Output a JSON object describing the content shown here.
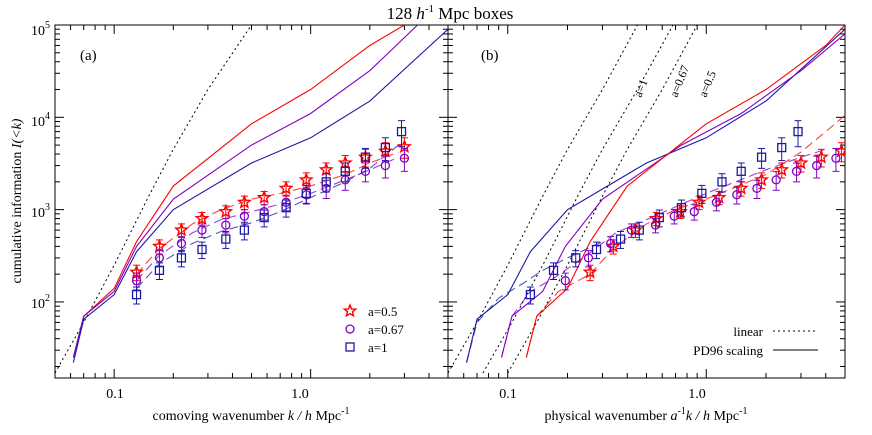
{
  "figure": {
    "title": "128 h-1 Mpc boxes",
    "title_main": "128 ",
    "title_h": "h",
    "title_exp": "-1",
    "title_rest": " Mpc boxes",
    "ylabel_main": "cumulative information  ",
    "ylabel_sym": "I(<k)",
    "colors": {
      "a=0.5": "#ff0000",
      "a=0.67": "#8000c0",
      "a=1": "#1a1aa6",
      "linear": "#000000"
    }
  },
  "chart_data": [
    {
      "type": "line",
      "panel_label": "(a)",
      "xlabel": "comoving wavenumber  k / h Mpc-1",
      "xlabel_main": "comoving wavenumber  ",
      "xlabel_sym": "k / h",
      "xlabel_rest": " Mpc",
      "xlabel_exp": "-1",
      "ylabel": "cumulative information  I(<k)",
      "x_scale": "log",
      "y_scale": "log",
      "xlim": [
        0.05,
        5.0
      ],
      "ylim": [
        15,
        100000
      ],
      "x_tick_labels": [
        {
          "value": 0.1,
          "label": "0.1"
        },
        {
          "value": 1.0,
          "label": "1.0"
        }
      ],
      "y_tick_labels": [
        {
          "value": 100,
          "label": "10",
          "exp": "2"
        },
        {
          "value": 1000,
          "label": "10",
          "exp": "3"
        },
        {
          "value": 10000,
          "label": "10",
          "exp": "4"
        },
        {
          "value": 100000,
          "label": "10",
          "exp": "5"
        }
      ],
      "legend": {
        "placement": "bottom-right",
        "entries": [
          {
            "label": "a=0.5",
            "marker": "star",
            "color": "#ff0000"
          },
          {
            "label": "a=0.67",
            "marker": "circle",
            "color": "#8000c0"
          },
          {
            "label": "a=1",
            "marker": "square",
            "color": "#1a1aa6"
          }
        ]
      },
      "series": [
        {
          "style": "linear",
          "color": "#000000",
          "dash": "2,3",
          "x": [
            0.05,
            0.07,
            0.1,
            0.15,
            0.2,
            0.3,
            0.5
          ],
          "y": [
            17,
            60,
            250,
            1400,
            4500,
            20000,
            100000
          ]
        },
        {
          "style": "pd96",
          "color": "#ff0000",
          "x": [
            0.062,
            0.07,
            0.1,
            0.13,
            0.2,
            0.5,
            1.0,
            2.0,
            3.0
          ],
          "y": [
            25,
            70,
            140,
            450,
            1800,
            8500,
            20000,
            60000,
            100000
          ]
        },
        {
          "style": "pd96",
          "color": "#8000c0",
          "x": [
            0.062,
            0.07,
            0.1,
            0.13,
            0.2,
            0.5,
            1.0,
            2.0,
            3.5
          ],
          "y": [
            25,
            70,
            130,
            400,
            1300,
            5000,
            11000,
            32000,
            100000
          ]
        },
        {
          "style": "pd96",
          "color": "#1a1aa6",
          "x": [
            0.062,
            0.07,
            0.1,
            0.13,
            0.2,
            0.5,
            1.0,
            2.0,
            5.0
          ],
          "y": [
            22,
            65,
            120,
            350,
            1000,
            3200,
            6000,
            15000,
            90000
          ]
        },
        {
          "style": "dashed",
          "color": "#ff0000",
          "dash": "9,5",
          "x": [
            0.13,
            0.17,
            0.25,
            0.35,
            0.5,
            0.7,
            1.0,
            1.5,
            2.0,
            2.8
          ],
          "y": [
            200,
            380,
            700,
            1000,
            1300,
            1500,
            1800,
            2400,
            3200,
            4200
          ]
        },
        {
          "style": "dashed",
          "color": "#8000c0",
          "dash": "9,5",
          "x": [
            0.13,
            0.17,
            0.25,
            0.35,
            0.5,
            0.7,
            1.0,
            1.5,
            2.0,
            2.8
          ],
          "y": [
            170,
            320,
            560,
            780,
            950,
            1150,
            1500,
            2100,
            2700,
            3700
          ]
        },
        {
          "style": "dashed",
          "color": "#1a1aa6",
          "dash": "9,5",
          "x": [
            0.13,
            0.17,
            0.25,
            0.35,
            0.5,
            0.7,
            1.0,
            1.5,
            2.0,
            2.8
          ],
          "y": [
            140,
            260,
            430,
            580,
            720,
            950,
            1350,
            2000,
            2800,
            5000
          ]
        }
      ],
      "points": [
        {
          "name": "a=0.5",
          "marker": "star",
          "color": "#ff0000",
          "x": [
            0.13,
            0.17,
            0.22,
            0.28,
            0.37,
            0.46,
            0.58,
            0.75,
            0.95,
            1.2,
            1.5,
            1.9,
            2.4,
            3.0
          ],
          "y": [
            210,
            400,
            600,
            800,
            950,
            1200,
            1350,
            1700,
            2100,
            2700,
            3200,
            3700,
            4300,
            4800
          ],
          "err": [
            40,
            70,
            100,
            130,
            150,
            200,
            220,
            300,
            400,
            500,
            650,
            800,
            1000,
            1200
          ]
        },
        {
          "name": "a=0.67",
          "marker": "circle",
          "color": "#8000c0",
          "x": [
            0.13,
            0.17,
            0.22,
            0.28,
            0.37,
            0.46,
            0.58,
            0.75,
            0.95,
            1.2,
            1.5,
            1.9,
            2.4,
            3.0
          ],
          "y": [
            170,
            300,
            430,
            600,
            680,
            850,
            950,
            1200,
            1450,
            1700,
            2100,
            2600,
            3000,
            3600
          ],
          "err": [
            35,
            60,
            80,
            100,
            120,
            150,
            180,
            230,
            300,
            380,
            480,
            600,
            800,
            1000
          ]
        },
        {
          "name": "a=1",
          "marker": "square",
          "color": "#1a1aa6",
          "x": [
            0.13,
            0.17,
            0.22,
            0.28,
            0.37,
            0.46,
            0.58,
            0.75,
            0.95,
            1.2,
            1.5,
            1.9,
            2.4,
            2.9
          ],
          "y": [
            120,
            220,
            300,
            370,
            480,
            600,
            820,
            1050,
            1500,
            2000,
            2600,
            3700,
            4700,
            7000
          ],
          "err": [
            25,
            45,
            60,
            75,
            100,
            130,
            170,
            220,
            330,
            450,
            600,
            900,
            1300,
            2200
          ]
        }
      ]
    },
    {
      "type": "line",
      "panel_label": "(b)",
      "xlabel": "physical wavenumber  a-1k / h Mpc-1",
      "xlabel_main": "physical wavenumber  ",
      "xlabel_sym": "a",
      "xlabel_sym_exp": "-1",
      "xlabel_sym2": "k / h",
      "xlabel_rest": " Mpc",
      "xlabel_exp": "-1",
      "x_scale": "log",
      "y_scale": "log",
      "xlim": [
        0.05,
        5.0
      ],
      "ylim": [
        15,
        100000
      ],
      "x_tick_labels": [
        {
          "value": 0.1,
          "label": "0.1"
        },
        {
          "value": 1.0,
          "label": "1.0"
        }
      ],
      "annotations": [
        {
          "text": "a=1",
          "x": 0.195,
          "y": 25000
        },
        {
          "text": "a=0.67",
          "x": 0.3,
          "y": 25000
        },
        {
          "text": "a=0.5",
          "x": 0.43,
          "y": 25000
        }
      ],
      "legend": {
        "placement": "bottom-right",
        "entries": [
          {
            "label": "linear",
            "style": "dotted"
          },
          {
            "label": "PD96 scaling",
            "style": "solid"
          }
        ]
      },
      "series": [
        {
          "style": "linear",
          "color": "#000000",
          "dash": "2,3",
          "x": [
            0.05,
            0.07,
            0.1,
            0.15,
            0.2,
            0.3,
            0.45
          ],
          "y": [
            17,
            60,
            250,
            1400,
            4500,
            20000,
            100000
          ]
        },
        {
          "style": "linear",
          "color": "#000000",
          "dash": "2,3",
          "x": [
            0.075,
            0.105,
            0.15,
            0.225,
            0.3,
            0.45,
            0.68
          ],
          "y": [
            17,
            60,
            250,
            1400,
            4500,
            20000,
            100000
          ]
        },
        {
          "style": "linear",
          "color": "#000000",
          "dash": "2,3",
          "x": [
            0.1,
            0.14,
            0.2,
            0.3,
            0.4,
            0.6,
            0.9
          ],
          "y": [
            17,
            60,
            250,
            1400,
            4500,
            20000,
            100000
          ]
        },
        {
          "style": "pd96",
          "color": "#1a1aa6",
          "x": [
            0.062,
            0.07,
            0.1,
            0.13,
            0.2,
            0.5,
            1.0,
            2.0,
            5.0
          ],
          "y": [
            22,
            65,
            120,
            350,
            1000,
            3200,
            6000,
            15000,
            90000
          ]
        },
        {
          "style": "pd96",
          "color": "#8000c0",
          "x": [
            0.093,
            0.105,
            0.15,
            0.195,
            0.3,
            0.75,
            1.5,
            3.0,
            5.0
          ],
          "y": [
            25,
            70,
            130,
            400,
            1300,
            5000,
            11000,
            32000,
            80000
          ]
        },
        {
          "style": "pd96",
          "color": "#ff0000",
          "x": [
            0.124,
            0.14,
            0.2,
            0.26,
            0.4,
            1.0,
            2.0,
            4.0,
            5.0
          ],
          "y": [
            25,
            70,
            140,
            450,
            1800,
            8500,
            20000,
            60000,
            100000
          ]
        },
        {
          "style": "dashed",
          "color": "#1a1aa6",
          "dash": "9,5",
          "x": [
            0.062,
            0.07,
            0.09,
            0.12,
            0.15,
            0.2,
            0.3
          ],
          "y": [
            22,
            60,
            110,
            160,
            220,
            300,
            450
          ]
        },
        {
          "style": "dashed",
          "color": "#8000c0",
          "dash": "9,5",
          "x": [
            0.093,
            0.105,
            0.13,
            0.17,
            0.25,
            0.35,
            0.5,
            1.0,
            2.0,
            3.0,
            4.0
          ],
          "y": [
            25,
            70,
            130,
            180,
            320,
            560,
            780,
            1500,
            2700,
            3700,
            4500
          ]
        },
        {
          "style": "dashed",
          "color": "#ff0000",
          "dash": "9,5",
          "x": [
            0.124,
            0.14,
            0.18,
            0.26,
            0.34,
            0.5,
            0.7,
            1.0,
            2.0,
            3.0,
            4.0,
            5.0
          ],
          "y": [
            25,
            70,
            130,
            200,
            380,
            700,
            1000,
            1300,
            2400,
            4200,
            7000,
            10500
          ]
        }
      ],
      "points": [
        {
          "name": "a=0.5",
          "marker": "star",
          "color": "#ff0000",
          "x": [
            0.26,
            0.34,
            0.44,
            0.56,
            0.74,
            0.92,
            1.16,
            1.5,
            1.9,
            2.4,
            3.0,
            3.8,
            4.8,
            6.0
          ],
          "y": [
            210,
            400,
            600,
            800,
            950,
            1200,
            1350,
            1700,
            2100,
            2700,
            3200,
            3700,
            4300,
            4800
          ],
          "err": [
            40,
            70,
            100,
            130,
            150,
            200,
            220,
            300,
            400,
            500,
            650,
            800,
            1000,
            1200
          ]
        },
        {
          "name": "a=0.67",
          "marker": "circle",
          "color": "#8000c0",
          "x": [
            0.195,
            0.255,
            0.33,
            0.42,
            0.555,
            0.69,
            0.87,
            1.125,
            1.425,
            1.8,
            2.25,
            2.85,
            3.6,
            4.5
          ],
          "y": [
            170,
            300,
            430,
            600,
            680,
            850,
            950,
            1200,
            1450,
            1700,
            2100,
            2600,
            3000,
            3600
          ],
          "err": [
            35,
            60,
            80,
            100,
            120,
            150,
            180,
            230,
            300,
            380,
            480,
            600,
            800,
            1000
          ]
        },
        {
          "name": "a=1",
          "marker": "square",
          "color": "#1a1aa6",
          "x": [
            0.13,
            0.17,
            0.22,
            0.28,
            0.37,
            0.46,
            0.58,
            0.75,
            0.95,
            1.2,
            1.5,
            1.9,
            2.4,
            2.9
          ],
          "y": [
            120,
            220,
            300,
            370,
            480,
            600,
            820,
            1050,
            1500,
            2000,
            2600,
            3700,
            4700,
            7000
          ],
          "err": [
            25,
            45,
            60,
            75,
            100,
            130,
            170,
            220,
            330,
            450,
            600,
            900,
            1300,
            2200
          ]
        }
      ]
    }
  ]
}
